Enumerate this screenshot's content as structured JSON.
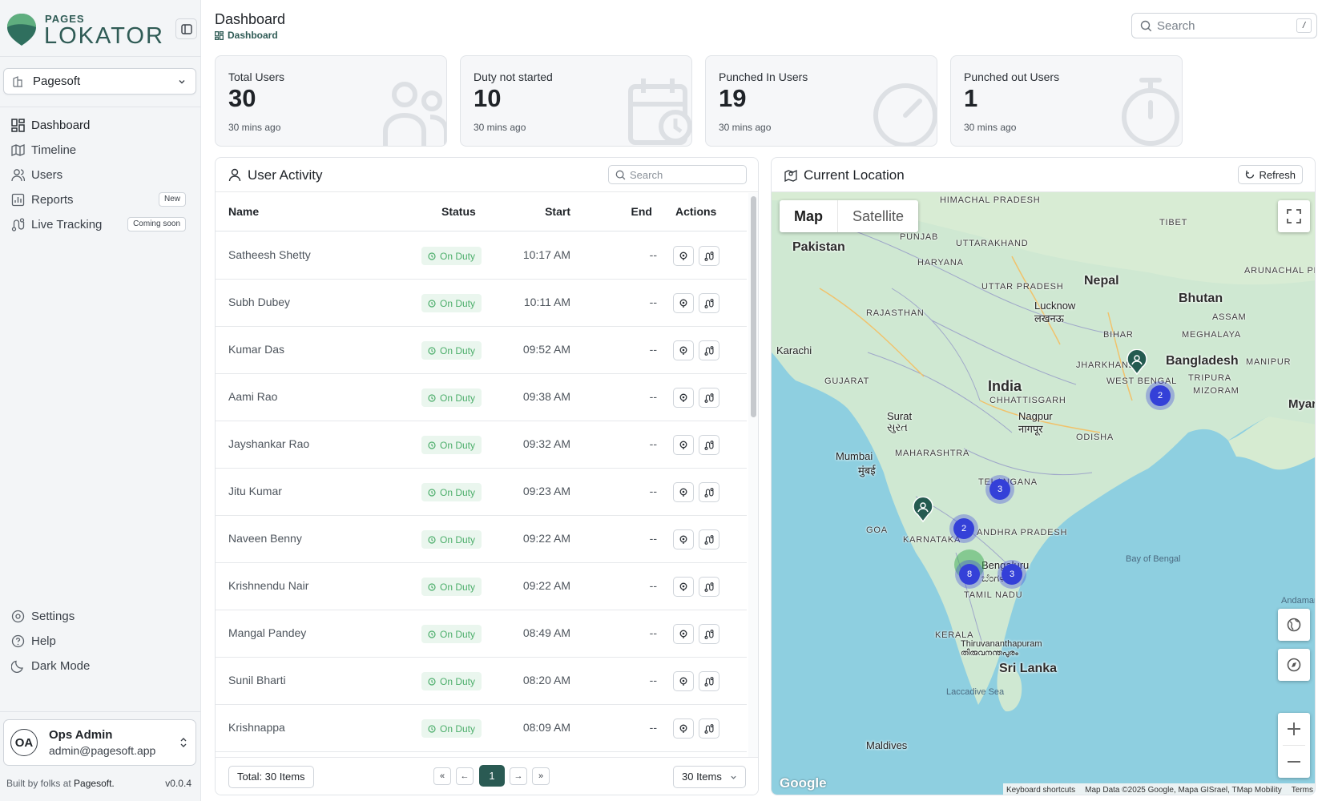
{
  "brand": {
    "small": "PAGES",
    "name": "LOKATOR"
  },
  "org": {
    "name": "Pagesoft"
  },
  "nav": {
    "items": [
      {
        "label": "Dashboard"
      },
      {
        "label": "Timeline"
      },
      {
        "label": "Users"
      },
      {
        "label": "Reports",
        "badge": "New"
      },
      {
        "label": "Live Tracking",
        "badge": "Coming soon"
      }
    ],
    "bottom": [
      {
        "label": "Settings"
      },
      {
        "label": "Help"
      },
      {
        "label": "Dark Mode"
      }
    ]
  },
  "user": {
    "initials": "OA",
    "name": "Ops Admin",
    "email": "admin@pagesoft.app"
  },
  "footer": {
    "built_prefix": "Built by folks at",
    "built_company": "Pagesoft.",
    "version": "v0.0.4"
  },
  "header": {
    "title": "Dashboard",
    "breadcrumb": "Dashboard",
    "search_placeholder": "Search",
    "search_shortcut": "/"
  },
  "stats": [
    {
      "label": "Total Users",
      "value": "30",
      "time": "30 mins ago"
    },
    {
      "label": "Duty not started",
      "value": "10",
      "time": "30 mins ago"
    },
    {
      "label": "Punched In Users",
      "value": "19",
      "time": "30 mins ago"
    },
    {
      "label": "Punched out Users",
      "value": "1",
      "time": "30 mins ago"
    }
  ],
  "activity": {
    "title": "User Activity",
    "search_placeholder": "Search",
    "columns": {
      "name": "Name",
      "status": "Status",
      "start": "Start",
      "end": "End",
      "actions": "Actions"
    },
    "rows": [
      {
        "name": "Satheesh Shetty",
        "status": "On Duty",
        "start": "10:17 AM",
        "end": "--"
      },
      {
        "name": "Subh Dubey",
        "status": "On Duty",
        "start": "10:11 AM",
        "end": "--"
      },
      {
        "name": "Kumar Das",
        "status": "On Duty",
        "start": "09:52 AM",
        "end": "--"
      },
      {
        "name": "Aami Rao",
        "status": "On Duty",
        "start": "09:38 AM",
        "end": "--"
      },
      {
        "name": "Jayshankar Rao",
        "status": "On Duty",
        "start": "09:32 AM",
        "end": "--"
      },
      {
        "name": "Jitu Kumar",
        "status": "On Duty",
        "start": "09:23 AM",
        "end": "--"
      },
      {
        "name": "Naveen Benny",
        "status": "On Duty",
        "start": "09:22 AM",
        "end": "--"
      },
      {
        "name": "Krishnendu Nair",
        "status": "On Duty",
        "start": "09:22 AM",
        "end": "--"
      },
      {
        "name": "Mangal Pandey",
        "status": "On Duty",
        "start": "08:49 AM",
        "end": "--"
      },
      {
        "name": "Sunil Bharti",
        "status": "On Duty",
        "start": "08:20 AM",
        "end": "--"
      },
      {
        "name": "Krishnappa",
        "status": "On Duty",
        "start": "08:09 AM",
        "end": "--"
      }
    ],
    "total": "Total: 30 Items",
    "page": "1",
    "per_page": "30 Items"
  },
  "location": {
    "title": "Current Location",
    "refresh": "Refresh",
    "map_tabs": [
      "Map",
      "Satellite"
    ],
    "labels": {
      "tibet": "TIBET",
      "pakistan": "Pakistan",
      "himachal": "HIMACHAL PRADESH",
      "punjab": "PUNJAB",
      "uttarakhand": "UTTARAKHAND",
      "haryana": "HARYANA",
      "arunachal": "ARUNACHAL PRADESH",
      "nepal": "Nepal",
      "bhutan": "Bhutan",
      "uttar_pradesh": "UTTAR PRADESH",
      "lucknow": "Lucknow",
      "lucknow_hi": "लखनऊ",
      "rajasthan": "RAJASTHAN",
      "assam": "ASSAM",
      "meghalaya": "MEGHALAYA",
      "bihar": "BIHAR",
      "karachi": "Karachi",
      "bangladesh": "Bangladesh",
      "manipur": "MANIPUR",
      "jharkhand": "JHARKHAND",
      "gujarat": "GUJARAT",
      "tripura": "TRIPURA",
      "india": "India",
      "west_bengal": "WEST BENGAL",
      "mizoram": "MIZORAM",
      "chhattisgarh": "CHHATTISGARH",
      "myanmar": "Myar (Bur",
      "surat": "Surat",
      "surat_gu": "સુરત",
      "nagpur": "Nagpur",
      "nagpur_mr": "नागपूर",
      "odisha": "ODISHA",
      "mumbai": "Mumbai",
      "mumbai_mr": "मुंबई",
      "maharashtra": "MAHARASHTRA",
      "telangana": "TELANGANA",
      "goa": "GOA",
      "karnataka": "KARNATAKA",
      "andhra": "ANDHRA PRADESH",
      "bay_of_bengal": "Bay of Bengal",
      "bengaluru": "Bengaluru",
      "bengaluru_kn": "ಬೆಂಗಳೂರು",
      "tamil_nadu": "TAMIL NADU",
      "andaman": "Andaman",
      "kerala": "KERALA",
      "tvm": "Thiruvananthapuram",
      "tvm_ml": "തിരുവനന്തപുരം",
      "sri_lanka": "Sri Lanka",
      "laccadive": "Laccadive Sea",
      "maldives": "Maldives"
    },
    "clusters": [
      "2",
      "3",
      "2",
      "8",
      "3"
    ],
    "attribution": {
      "shortcuts": "Keyboard shortcuts",
      "data": "Map Data ©2025 Google, Mapa GISrael, TMap Mobility",
      "terms": "Terms"
    },
    "logo": "Google"
  },
  "colors": {
    "accent": "#2a5a53",
    "on_duty_bg": "#eaf6ee",
    "on_duty_text": "#4cae6b",
    "cluster": "#3440d8",
    "sea": "#8ecfe0",
    "land": "#c9e6cf"
  }
}
